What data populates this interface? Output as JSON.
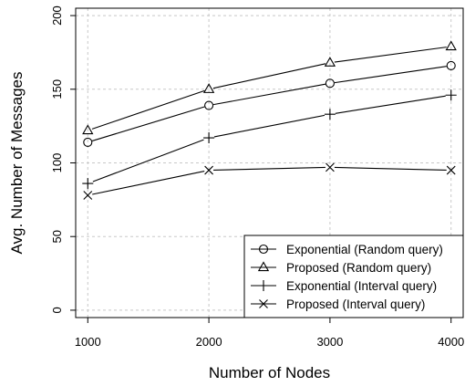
{
  "chart_data": {
    "type": "line",
    "xlabel": "Number of Nodes",
    "ylabel": "Avg. Number of Messages",
    "x": [
      1000,
      2000,
      3000,
      4000
    ],
    "xlim": [
      900,
      4100
    ],
    "ylim": [
      -5,
      205
    ],
    "xticks": [
      1000,
      2000,
      3000,
      4000
    ],
    "yticks": [
      0,
      50,
      100,
      150,
      200
    ],
    "grid": true,
    "legend_position": "bottom-right",
    "series": [
      {
        "name": "Exponential (Random query)",
        "marker": "circle",
        "values": [
          114,
          139,
          154,
          166
        ]
      },
      {
        "name": "Proposed (Random query)",
        "marker": "triangle",
        "values": [
          122,
          150,
          168,
          179
        ]
      },
      {
        "name": "Exponential (Interval query)",
        "marker": "plus",
        "values": [
          86,
          117,
          133,
          146
        ]
      },
      {
        "name": "Proposed (Interval query)",
        "marker": "cross",
        "values": [
          78,
          95,
          97,
          95
        ]
      }
    ]
  }
}
